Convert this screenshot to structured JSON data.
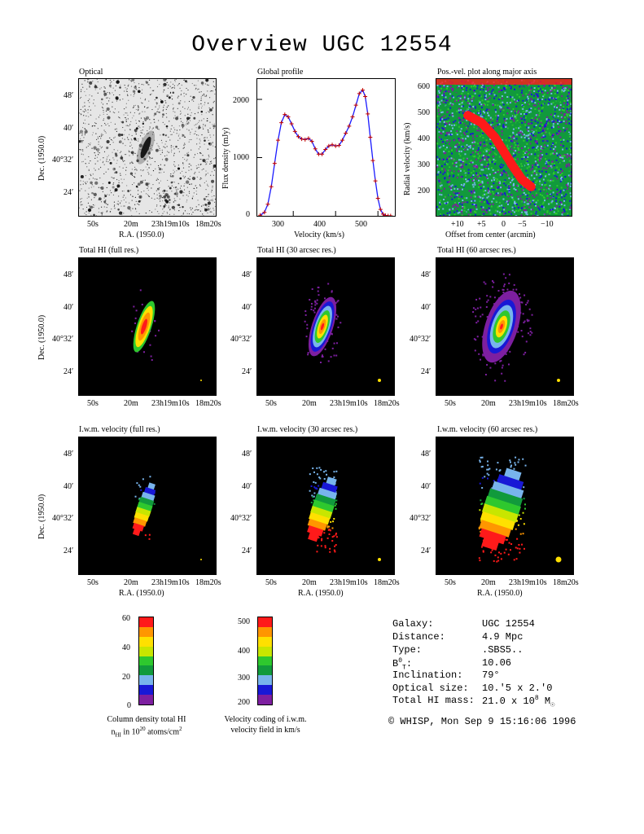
{
  "title": "Overview UGC 12554",
  "colors": {
    "coding": [
      "#7d1fa0",
      "#1818d6",
      "#78b4ec",
      "#119a3c",
      "#2ec82e",
      "#c8e600",
      "#ffe000",
      "#ff9600",
      "#ff1a1a"
    ],
    "optical_bg": "#e6e6e6",
    "profile_line": "#1a1aff",
    "profile_marker": "#c00000",
    "pv_data": "#ff1a1a",
    "beam": "#ffe000"
  },
  "axes": {
    "ra_ticks": [
      "50s",
      "20m",
      "23h19m10s",
      "18m20s"
    ],
    "dec_ticks": [
      "48′",
      "40′",
      "40°32′",
      "24′"
    ],
    "ra_label": "R.A. (1950.0)",
    "dec_label": "Dec. (1950.0)"
  },
  "panels": {
    "optical": "Optical",
    "profile": "Global profile",
    "pv": "Pos.-vel. plot along major axis",
    "hi_full": "Total HI (full res.)",
    "hi_30": "Total HI (30 arcsec res.)",
    "hi_60": "Total HI (60 arcsec res.)",
    "vel_full": "I.w.m. velocity (full res.)",
    "vel_30": "I.w.m. velocity (30 arcsec res.)",
    "vel_60": "I.w.m. velocity (60 arcsec res.)"
  },
  "profile_axes": {
    "xlabel": "Velocity (km/s)",
    "ylabel": "Flux density (mJy)",
    "xticks": [
      "300",
      "400",
      "500"
    ],
    "yticks": [
      "2000",
      "1000",
      "0"
    ]
  },
  "pv_axes": {
    "xlabel": "Offset from center (arcmin)",
    "ylabel": "Radial velocity (km/s)",
    "xticks": [
      "+10",
      "+5",
      "0",
      "−5",
      "−10"
    ],
    "yticks": [
      "600",
      "500",
      "400",
      "300",
      "200"
    ]
  },
  "colorbars": {
    "column": {
      "ticks": [
        "60",
        "40",
        "20",
        "0"
      ],
      "caption_line1": "Column density total HI",
      "caption_line2": "n_HI in 10^20 atoms/cm^2"
    },
    "velocity": {
      "ticks": [
        "500",
        "400",
        "300",
        "200"
      ],
      "caption_line1": "Velocity coding of i.w.m.",
      "caption_line2": "velocity field in km/s"
    }
  },
  "info": [
    {
      "label": "Galaxy:",
      "value": "UGC 12554"
    },
    {
      "label": "Distance:",
      "value": "4.9 Mpc"
    },
    {
      "label": "Type:",
      "value": ".SBS5.."
    },
    {
      "label": "B0T:",
      "value": "10.06"
    },
    {
      "label": "Inclination:",
      "value": "79°"
    },
    {
      "label": "Optical size:",
      "value": "10.′5 x 2.′0"
    },
    {
      "label": "Total HI mass:",
      "value": "21.0 x 10^8 M☉"
    }
  ],
  "credit": "© WHISP, Mon Sep  9 15:16:06 1996",
  "chart_data": [
    {
      "type": "line",
      "title": "Global profile",
      "xlabel": "Velocity (km/s)",
      "ylabel": "Flux density (mJy)",
      "xlim": [
        215,
        540
      ],
      "ylim": [
        0,
        2350
      ],
      "x": [
        222,
        232,
        240,
        248,
        256,
        264,
        272,
        280,
        288,
        296,
        304,
        312,
        320,
        328,
        336,
        344,
        352,
        360,
        368,
        376,
        384,
        392,
        400,
        408,
        416,
        424,
        432,
        440,
        448,
        456,
        464,
        470,
        476,
        482,
        488,
        494,
        500,
        506,
        512,
        518,
        524,
        530
      ],
      "y": [
        10,
        60,
        200,
        500,
        900,
        1300,
        1600,
        1740,
        1700,
        1580,
        1450,
        1360,
        1320,
        1310,
        1330,
        1280,
        1150,
        1060,
        1060,
        1140,
        1200,
        1220,
        1200,
        1210,
        1300,
        1420,
        1540,
        1700,
        1900,
        2100,
        2160,
        2050,
        1750,
        1350,
        950,
        600,
        300,
        110,
        30,
        5,
        0,
        0
      ]
    },
    {
      "type": "heatmap",
      "title": "Pos.-vel. plot along major axis",
      "xlabel": "Offset from center (arcmin)",
      "ylabel": "Radial velocity (km/s)",
      "xlim": [
        15,
        -15
      ],
      "ylim": [
        150,
        620
      ],
      "ridge": [
        {
          "offset": 8,
          "velocity": 495
        },
        {
          "offset": 5,
          "velocity": 470
        },
        {
          "offset": 2,
          "velocity": 420
        },
        {
          "offset": 0,
          "velocity": 370
        },
        {
          "offset": -2,
          "velocity": 320
        },
        {
          "offset": -4,
          "velocity": 275
        },
        {
          "offset": -6,
          "velocity": 250
        }
      ]
    }
  ]
}
